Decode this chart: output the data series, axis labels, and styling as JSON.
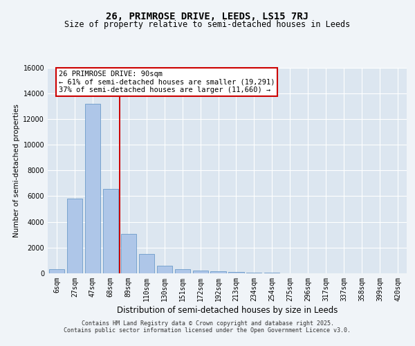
{
  "title": "26, PRIMROSE DRIVE, LEEDS, LS15 7RJ",
  "subtitle": "Size of property relative to semi-detached houses in Leeds",
  "xlabel": "Distribution of semi-detached houses by size in Leeds",
  "ylabel": "Number of semi-detached properties",
  "bar_labels": [
    "6sqm",
    "27sqm",
    "47sqm",
    "68sqm",
    "89sqm",
    "110sqm",
    "130sqm",
    "151sqm",
    "172sqm",
    "192sqm",
    "213sqm",
    "234sqm",
    "254sqm",
    "275sqm",
    "296sqm",
    "317sqm",
    "337sqm",
    "358sqm",
    "399sqm",
    "420sqm"
  ],
  "bar_values": [
    300,
    5800,
    13200,
    6550,
    3050,
    1480,
    600,
    310,
    240,
    140,
    110,
    75,
    45,
    18,
    8,
    4,
    2,
    1,
    1,
    0
  ],
  "bar_color": "#aec6e8",
  "bar_edge_color": "#5b8fc2",
  "vline_position": 3.5,
  "annotation_title": "26 PRIMROSE DRIVE: 90sqm",
  "annotation_line1": "← 61% of semi-detached houses are smaller (19,291)",
  "annotation_line2": "37% of semi-detached houses are larger (11,660) →",
  "annotation_box_facecolor": "#ffffff",
  "annotation_border_color": "#cc0000",
  "vline_color": "#cc0000",
  "ylim": [
    0,
    16000
  ],
  "yticks": [
    0,
    2000,
    4000,
    6000,
    8000,
    10000,
    12000,
    14000,
    16000
  ],
  "plot_bg_color": "#dce6f0",
  "fig_bg_color": "#f0f4f8",
  "footer_line1": "Contains HM Land Registry data © Crown copyright and database right 2025.",
  "footer_line2": "Contains public sector information licensed under the Open Government Licence v3.0.",
  "title_fontsize": 10,
  "subtitle_fontsize": 8.5,
  "ylabel_fontsize": 7.5,
  "xlabel_fontsize": 8.5,
  "tick_fontsize": 7,
  "annotation_fontsize": 7.5,
  "footer_fontsize": 6
}
